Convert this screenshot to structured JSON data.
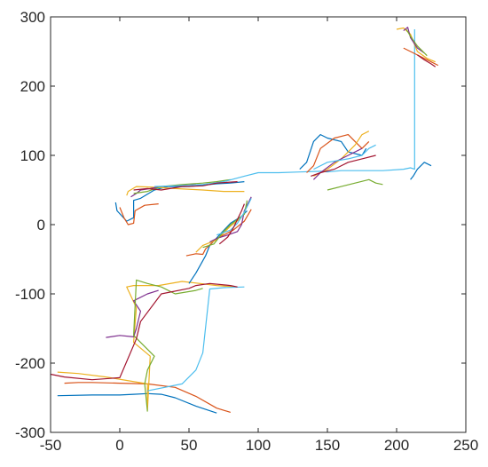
{
  "chart_data": {
    "type": "line",
    "title": "",
    "xlabel": "",
    "ylabel": "",
    "xlim": [
      -50,
      250
    ],
    "ylim": [
      -300,
      300
    ],
    "x_ticks": [
      "-50",
      "0",
      "50",
      "100",
      "150",
      "200",
      "250"
    ],
    "y_ticks": [
      "300",
      "200",
      "100",
      "0",
      "-100",
      "-200",
      "-300"
    ],
    "grid": false,
    "legend": "none",
    "colors": [
      "#0072BD",
      "#D95319",
      "#EDB120",
      "#7E2F8E",
      "#77AC30",
      "#4DBEEE",
      "#A2142F"
    ],
    "series": [
      {
        "color": "#0072BD",
        "x": [
          -45,
          -20,
          0,
          10,
          20,
          30,
          40,
          55,
          70
        ],
        "y": [
          -247,
          -246,
          -246,
          -245,
          -244,
          -245,
          -250,
          -262,
          -272
        ]
      },
      {
        "color": "#D95319",
        "x": [
          -40,
          -30,
          -20,
          0,
          20,
          40,
          55,
          70,
          80
        ],
        "y": [
          -229,
          -228,
          -228,
          -229,
          -230,
          -235,
          -248,
          -265,
          -271
        ]
      },
      {
        "color": "#EDB120",
        "x": [
          -45,
          -30,
          -10,
          5,
          20,
          20,
          22,
          10,
          12,
          5,
          10,
          28,
          45,
          58,
          70,
          85
        ],
        "y": [
          -213,
          -215,
          -220,
          -225,
          -230,
          -268,
          -190,
          -170,
          -120,
          -90,
          -88,
          -88,
          -82,
          -85,
          -88,
          -90
        ]
      },
      {
        "color": "#7E2F8E",
        "x": [
          -10,
          0,
          10,
          12,
          15,
          10,
          20,
          28
        ],
        "y": [
          -163,
          -160,
          -162,
          -150,
          -125,
          -110,
          -100,
          -95
        ]
      },
      {
        "color": "#77AC30",
        "x": [
          20,
          18,
          20,
          25,
          10,
          12,
          20,
          30,
          40,
          55,
          60
        ],
        "y": [
          -270,
          -230,
          -210,
          -190,
          -160,
          -80,
          -85,
          -90,
          -100,
          -95,
          -92
        ]
      },
      {
        "color": "#4DBEEE",
        "x": [
          20,
          45,
          55,
          60,
          65,
          75,
          90
        ],
        "y": [
          -240,
          -230,
          -210,
          -185,
          -93,
          -91,
          -90
        ]
      },
      {
        "color": "#A2142F",
        "x": [
          -50,
          -40,
          -20,
          0,
          12,
          15,
          30,
          50,
          55,
          65,
          80,
          85
        ],
        "y": [
          -216,
          -220,
          -224,
          -221,
          -165,
          -140,
          -100,
          -92,
          -88,
          -85,
          -88,
          -90
        ]
      },
      {
        "color": "#0072BD",
        "x": [
          50,
          55,
          62,
          65,
          72,
          80,
          88,
          92
        ],
        "y": [
          -85,
          -70,
          -45,
          -30,
          -15,
          2,
          12,
          20
        ]
      },
      {
        "color": "#D95319",
        "x": [
          48,
          55,
          60,
          62,
          70,
          82,
          90,
          95
        ],
        "y": [
          -45,
          -42,
          -43,
          -35,
          -20,
          -8,
          5,
          22
        ]
      },
      {
        "color": "#EDB120",
        "x": [
          55,
          60,
          70,
          75,
          80,
          88
        ],
        "y": [
          -40,
          -30,
          -22,
          -12,
          -2,
          10
        ]
      },
      {
        "color": "#7E2F8E",
        "x": [
          65,
          70,
          78,
          85,
          88,
          90,
          95
        ],
        "y": [
          -25,
          -20,
          -15,
          -10,
          0,
          20,
          40
        ]
      },
      {
        "color": "#77AC30",
        "x": [
          60,
          68,
          75,
          80,
          90,
          92
        ],
        "y": [
          -33,
          -28,
          -10,
          0,
          15,
          35
        ]
      },
      {
        "color": "#4DBEEE",
        "x": [
          70,
          80,
          85,
          90,
          95
        ],
        "y": [
          -15,
          -8,
          2,
          18,
          38
        ]
      },
      {
        "color": "#A2142F",
        "x": [
          72,
          78,
          82,
          88,
          90
        ],
        "y": [
          -28,
          -18,
          -5,
          20,
          30
        ]
      },
      {
        "color": "#0072BD",
        "x": [
          -3,
          -2,
          5,
          10,
          10,
          15,
          25,
          35,
          50,
          60,
          70,
          80,
          90
        ],
        "y": [
          32,
          20,
          5,
          10,
          35,
          38,
          50,
          55,
          55,
          57,
          59,
          60,
          62
        ]
      },
      {
        "color": "#D95319",
        "x": [
          0,
          3,
          6,
          10,
          11,
          18,
          28
        ],
        "y": [
          25,
          10,
          0,
          2,
          20,
          28,
          30
        ]
      },
      {
        "color": "#EDB120",
        "x": [
          5,
          6,
          12,
          25,
          40,
          60,
          75,
          90
        ],
        "y": [
          42,
          48,
          55,
          54,
          52,
          50,
          48,
          48
        ]
      },
      {
        "color": "#7E2F8E",
        "x": [
          8,
          12,
          15,
          22,
          30,
          40,
          55
        ],
        "y": [
          40,
          45,
          50,
          52,
          55,
          56,
          58
        ]
      },
      {
        "color": "#77AC30",
        "x": [
          10,
          20,
          30,
          45,
          60,
          70,
          80
        ],
        "y": [
          45,
          48,
          55,
          58,
          60,
          62,
          65
        ]
      },
      {
        "color": "#4DBEEE",
        "x": [
          25,
          40,
          60,
          75,
          90,
          100,
          115,
          130,
          145,
          150,
          160,
          175,
          190,
          205,
          210,
          213,
          213
        ],
        "y": [
          55,
          56,
          58,
          62,
          70,
          75,
          75,
          76,
          77,
          76,
          78,
          78,
          78,
          80,
          82,
          80,
          282
        ]
      },
      {
        "color": "#A2142F",
        "x": [
          10,
          20,
          30,
          45,
          60,
          70,
          85
        ],
        "y": [
          50,
          52,
          50,
          55,
          56,
          60,
          62
        ]
      },
      {
        "color": "#0072BD",
        "x": [
          130,
          135,
          140,
          145,
          150,
          160,
          165,
          175,
          178
        ],
        "y": [
          80,
          90,
          120,
          130,
          125,
          120,
          105,
          100,
          110
        ]
      },
      {
        "color": "#D95319",
        "x": [
          135,
          140,
          145,
          155,
          165,
          170,
          175,
          180
        ],
        "y": [
          75,
          85,
          110,
          125,
          130,
          120,
          110,
          120
        ]
      },
      {
        "color": "#EDB120",
        "x": [
          140,
          150,
          160,
          170,
          175,
          180
        ],
        "y": [
          70,
          80,
          95,
          115,
          130,
          135
        ]
      },
      {
        "color": "#7E2F8E",
        "x": [
          140,
          145,
          155,
          165,
          175
        ],
        "y": [
          65,
          75,
          90,
          100,
          110
        ]
      },
      {
        "color": "#77AC30",
        "x": [
          150,
          160,
          170,
          180,
          185,
          190
        ],
        "y": [
          50,
          55,
          60,
          65,
          60,
          58
        ]
      },
      {
        "color": "#4DBEEE",
        "x": [
          140,
          150,
          165,
          175,
          180,
          185
        ],
        "y": [
          80,
          90,
          95,
          100,
          110,
          115
        ]
      },
      {
        "color": "#A2142F",
        "x": [
          138,
          145,
          155,
          165,
          175,
          185
        ],
        "y": [
          70,
          75,
          80,
          90,
          95,
          100
        ]
      },
      {
        "color": "#0072BD",
        "x": [
          210,
          212,
          215,
          220,
          225
        ],
        "y": [
          65,
          70,
          80,
          90,
          85
        ]
      },
      {
        "color": "#D95319",
        "x": [
          205,
          210,
          215,
          220,
          225,
          230
        ],
        "y": [
          255,
          250,
          245,
          240,
          235,
          230
        ]
      },
      {
        "color": "#EDB120",
        "x": [
          200,
          205,
          210,
          215,
          222,
          228
        ],
        "y": [
          282,
          284,
          275,
          250,
          240,
          235
        ]
      },
      {
        "color": "#7E2F8E",
        "x": [
          205,
          208,
          210,
          215,
          220
        ],
        "y": [
          280,
          285,
          270,
          255,
          248
        ]
      },
      {
        "color": "#77AC30",
        "x": [
          207,
          210,
          215,
          222
        ],
        "y": [
          282,
          272,
          258,
          244
        ]
      },
      {
        "color": "#A2142F",
        "x": [
          215,
          220,
          225,
          228
        ],
        "y": [
          245,
          238,
          232,
          228
        ]
      }
    ]
  }
}
